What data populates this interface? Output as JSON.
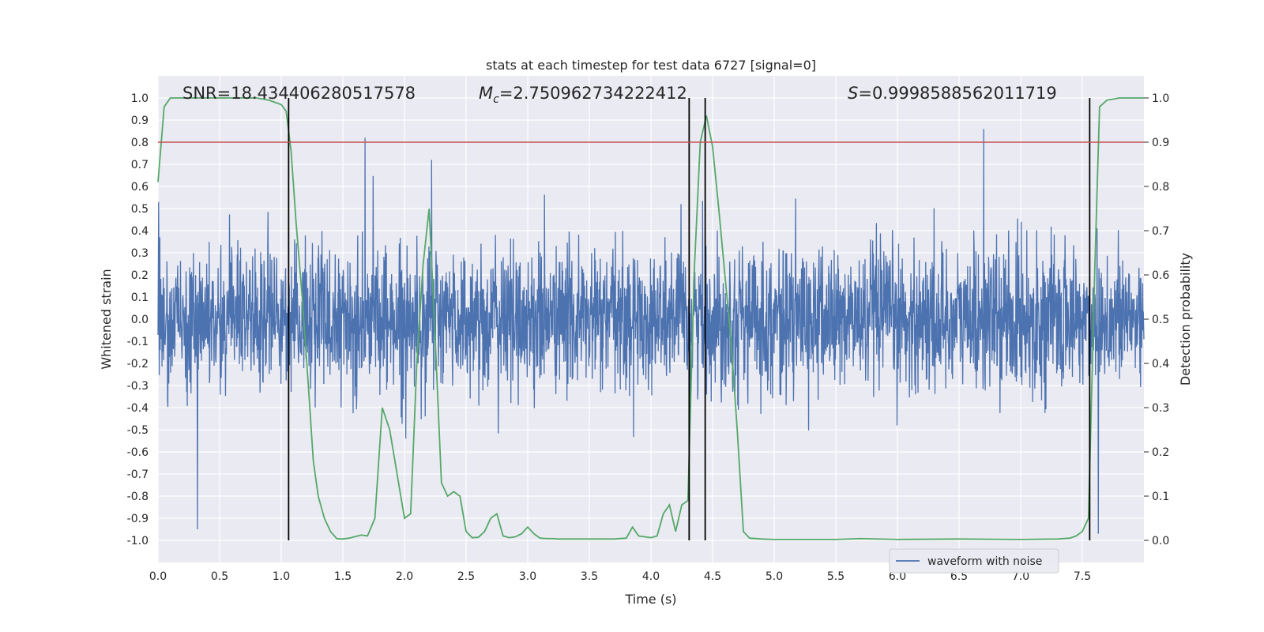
{
  "chart_data": {
    "type": "line",
    "title": "stats at each timestep for test data 6727 [signal=0]",
    "xlabel": "Time (s)",
    "ylabel": "Whitened strain",
    "y2label": "Detection probability",
    "xlim": [
      0.0,
      8.0
    ],
    "ylim": [
      -1.1,
      1.1
    ],
    "y2lim": [
      -0.05,
      1.05
    ],
    "x_ticks": [
      "0.0",
      "0.5",
      "1.0",
      "1.5",
      "2.0",
      "2.5",
      "3.0",
      "3.5",
      "4.0",
      "4.5",
      "5.0",
      "5.5",
      "6.0",
      "6.5",
      "7.0",
      "7.5"
    ],
    "y_ticks": [
      "1.0",
      "0.9",
      "0.8",
      "0.7",
      "0.6",
      "0.5",
      "0.4",
      "0.3",
      "0.2",
      "0.1",
      "0.0",
      "-0.1",
      "-0.2",
      "-0.3",
      "-0.4",
      "-0.5",
      "-0.6",
      "-0.7",
      "-0.8",
      "-0.9",
      "-1.0"
    ],
    "y2_ticks": [
      "1.0",
      "0.9",
      "0.8",
      "0.7",
      "0.6",
      "0.5",
      "0.4",
      "0.3",
      "0.2",
      "0.1",
      "0.0"
    ],
    "annotations": {
      "snr": "SNR=18.434406280517578",
      "mc_symbol": "M",
      "mc_sub": "c",
      "mc_value": "=2.750962734222412",
      "s_symbol": "S",
      "s_value": "=0.9998588562011719"
    },
    "legend": {
      "label": "waveform with noise",
      "position": "lower right"
    },
    "threshold": {
      "value": 0.9,
      "axis": "y2",
      "color": "#c44e52"
    },
    "vertical_lines_x": [
      1.06,
      4.31,
      4.44,
      7.56
    ],
    "series": [
      {
        "name": "waveform with noise",
        "axis": "y",
        "color": "#4c72b0",
        "description_range": [
          -0.97,
          0.86
        ],
        "notable_spikes": [
          {
            "x": 0.32,
            "y": -0.95
          },
          {
            "x": 1.68,
            "y": 0.82
          },
          {
            "x": 2.22,
            "y": 0.72
          },
          {
            "x": 6.7,
            "y": 0.86
          },
          {
            "x": 7.63,
            "y": -0.97
          }
        ]
      },
      {
        "name": "detection probability",
        "axis": "y2",
        "color": "#55a868",
        "x": [
          0.0,
          0.05,
          0.1,
          0.2,
          0.4,
          0.6,
          0.8,
          0.9,
          0.95,
          1.0,
          1.04,
          1.08,
          1.12,
          1.17,
          1.22,
          1.26,
          1.3,
          1.35,
          1.4,
          1.45,
          1.5,
          1.55,
          1.65,
          1.7,
          1.76,
          1.82,
          1.88,
          1.94,
          2.0,
          2.05,
          2.1,
          2.15,
          2.2,
          2.25,
          2.3,
          2.35,
          2.4,
          2.45,
          2.5,
          2.55,
          2.6,
          2.65,
          2.7,
          2.75,
          2.8,
          2.85,
          2.9,
          2.95,
          3.0,
          3.05,
          3.1,
          3.15,
          3.2,
          3.25,
          3.3,
          3.5,
          3.7,
          3.8,
          3.85,
          3.9,
          3.95,
          4.0,
          4.05,
          4.1,
          4.15,
          4.2,
          4.25,
          4.3,
          4.35,
          4.4,
          4.45,
          4.5,
          4.55,
          4.6,
          4.65,
          4.7,
          4.75,
          4.8,
          4.9,
          5.0,
          5.5,
          5.7,
          6.0,
          6.5,
          7.0,
          7.3,
          7.4,
          7.45,
          7.5,
          7.55,
          7.6,
          7.64,
          7.7,
          7.8,
          8.0
        ],
        "y": [
          0.81,
          0.98,
          1.0,
          1.0,
          1.0,
          1.0,
          1.0,
          0.995,
          0.99,
          0.985,
          0.97,
          0.88,
          0.72,
          0.55,
          0.35,
          0.18,
          0.1,
          0.05,
          0.02,
          0.004,
          0.003,
          0.005,
          0.012,
          0.01,
          0.05,
          0.3,
          0.25,
          0.15,
          0.05,
          0.06,
          0.4,
          0.62,
          0.75,
          0.45,
          0.13,
          0.1,
          0.11,
          0.1,
          0.02,
          0.006,
          0.007,
          0.02,
          0.05,
          0.06,
          0.01,
          0.006,
          0.008,
          0.015,
          0.03,
          0.015,
          0.005,
          0.004,
          0.004,
          0.003,
          0.003,
          0.003,
          0.003,
          0.005,
          0.03,
          0.01,
          0.008,
          0.006,
          0.01,
          0.06,
          0.08,
          0.02,
          0.08,
          0.09,
          0.6,
          0.9,
          0.96,
          0.89,
          0.75,
          0.6,
          0.45,
          0.25,
          0.02,
          0.005,
          0.003,
          0.002,
          0.002,
          0.004,
          0.002,
          0.003,
          0.002,
          0.003,
          0.005,
          0.01,
          0.02,
          0.05,
          0.6,
          0.98,
          0.995,
          1.0,
          1.0
        ]
      }
    ]
  }
}
